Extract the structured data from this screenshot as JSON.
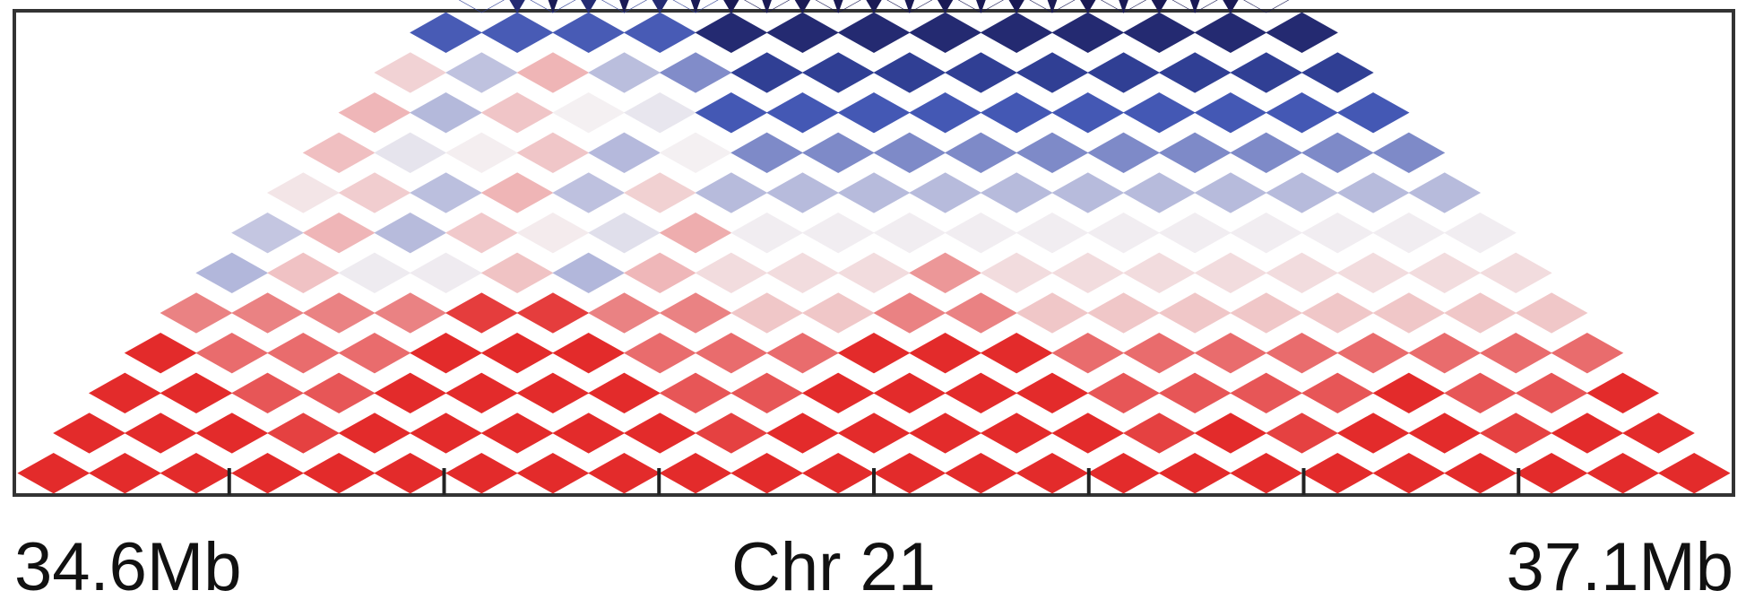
{
  "chart_data": {
    "type": "heatmap",
    "title": "",
    "xlabel": "Chr 21",
    "x_start_label": "34.6Mb",
    "x_end_label": "37.1Mb",
    "x_range_mb": [
      34.6,
      37.1
    ],
    "colormap": {
      "low": "#1a1a55",
      "mid_low": "#3a4fb0",
      "neutral": "#f4f0f2",
      "high": "#e32b2b"
    },
    "bins": 24,
    "domain_boundaries_bins": [
      0,
      4,
      10,
      16,
      18,
      21,
      24
    ],
    "tick_count": 8
  }
}
